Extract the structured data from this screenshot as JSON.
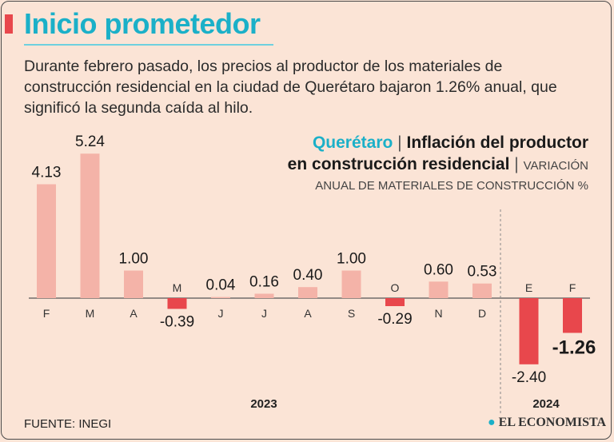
{
  "header": {
    "title": "Inicio prometedor",
    "description": "Durante febrero pasado, los precios al productor de los materiales de construcción residencial en la ciudad de Querétaro bajaron 1.26% anual, que significó la segunda caída al hilo."
  },
  "chart_title": {
    "city": "Querétaro",
    "line1": "Inflación del productor",
    "line2": "en construcción residencial",
    "unit_part1": "VARIACIÓN",
    "unit_part2": "ANUAL DE MATERIALES DE CONSTRUCCIÓN %"
  },
  "chart_data": {
    "type": "bar",
    "categories": [
      "F",
      "M",
      "A",
      "M",
      "J",
      "J",
      "A",
      "S",
      "O",
      "N",
      "D",
      "E",
      "F"
    ],
    "values": [
      4.13,
      5.24,
      1.0,
      -0.39,
      0.04,
      0.16,
      0.4,
      1.0,
      -0.29,
      0.6,
      0.53,
      -2.4,
      -1.26
    ],
    "labels": [
      "4.13",
      "5.24",
      "1.00",
      "-0.39",
      "0.04",
      "0.16",
      "0.40",
      "1.00",
      "-0.29",
      "0.60",
      "0.53",
      "-2.40",
      "-1.26"
    ],
    "year_groups": [
      {
        "label": "2023",
        "count": 11
      },
      {
        "label": "2024",
        "count": 2
      }
    ],
    "colors": {
      "positive": "#f4b3a8",
      "negative": "#e8474c"
    }
  },
  "footer": {
    "source": "FUENTE: INEGI",
    "logo_dot": "●",
    "logo_text": "EL ECONOMISTA"
  }
}
